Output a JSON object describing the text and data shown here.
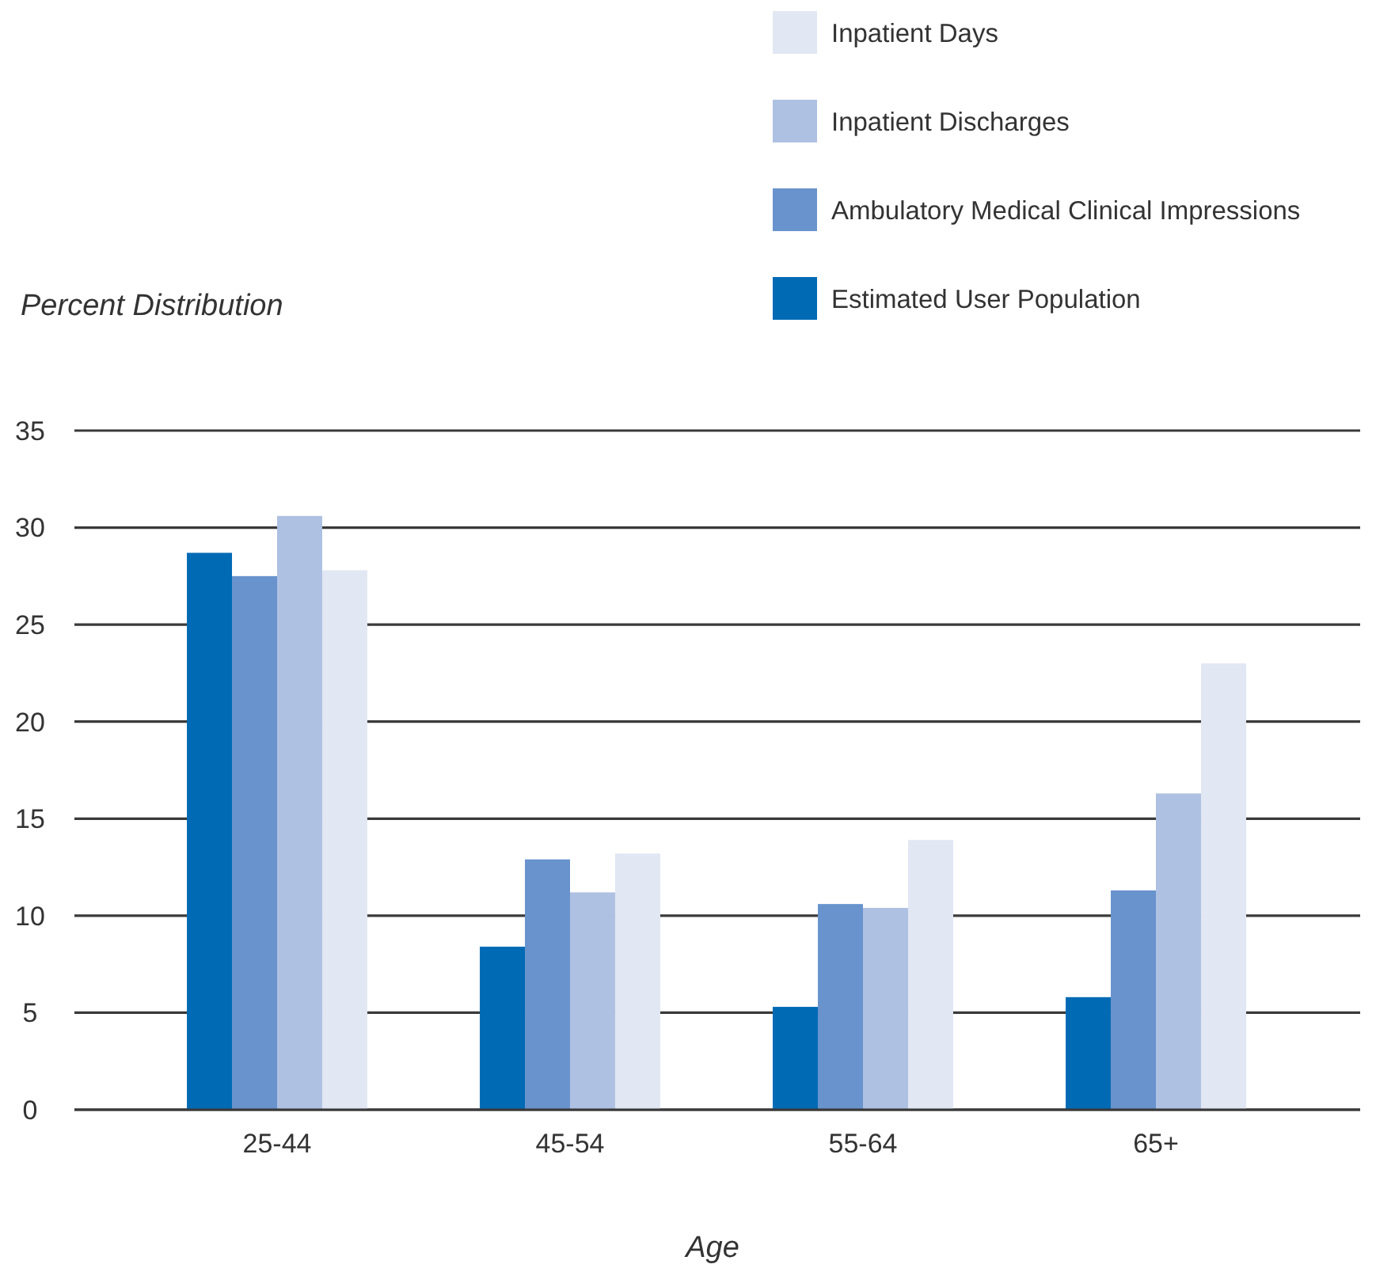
{
  "chart_data": {
    "type": "bar",
    "xlabel": "Age",
    "ylabel": "Percent Distribution",
    "categories": [
      "25-44",
      "45-54",
      "55-64",
      "65+"
    ],
    "series": [
      {
        "name": "Estimated User Population",
        "color": "#006ab5",
        "values": [
          28.7,
          8.4,
          5.3,
          5.8
        ]
      },
      {
        "name": "Ambulatory Medical Clinical Impressions",
        "color": "#6893cd",
        "values": [
          27.5,
          12.9,
          10.6,
          11.3
        ]
      },
      {
        "name": "Inpatient Discharges",
        "color": "#aec1e2",
        "values": [
          30.6,
          11.2,
          10.4,
          16.3
        ]
      },
      {
        "name": "Inpatient Days",
        "color": "#e1e7f3",
        "values": [
          27.8,
          13.2,
          13.9,
          23.0
        ]
      }
    ],
    "ylim": [
      0,
      35
    ],
    "yticks": [
      0,
      5,
      10,
      15,
      20,
      25,
      30,
      35
    ],
    "grid": "y",
    "legend": "top right"
  }
}
